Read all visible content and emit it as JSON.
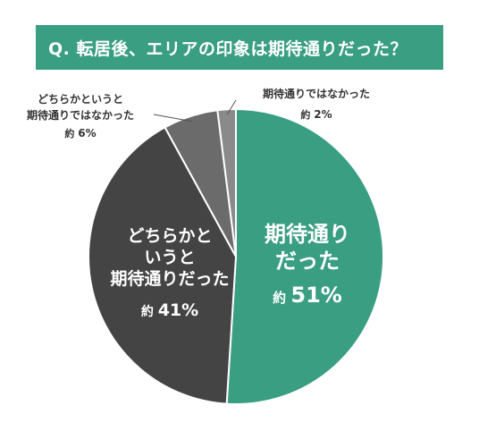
{
  "banner": {
    "title": "Q. 転居後、エリアの印象は期待通りだった？"
  },
  "colors": {
    "banner_bg": "#3a9e82",
    "slices": [
      "#3a9e82",
      "#444444",
      "#6b6b6b",
      "#8a8a8a"
    ],
    "slice_border": "#ffffff",
    "leader": "#555555"
  },
  "chart_data": {
    "type": "pie",
    "title": "Q. 転居後、エリアの印象は期待通りだった？",
    "unit": "%",
    "slices": [
      {
        "label_lines": [
          "期待通り",
          "だった"
        ],
        "prefix": "約",
        "value": 51,
        "value_text": "51%"
      },
      {
        "label_lines": [
          "どちらかと",
          "いうと",
          "期待通りだった"
        ],
        "prefix": "約",
        "value": 41,
        "value_text": "41%"
      },
      {
        "label_lines": [
          "どちらかというと",
          "期待通りではなかった"
        ],
        "prefix": "約",
        "value": 6,
        "value_text": "6%"
      },
      {
        "label_lines": [
          "期待通りではなかった"
        ],
        "prefix": "約",
        "value": 2,
        "value_text": "2%"
      }
    ]
  }
}
